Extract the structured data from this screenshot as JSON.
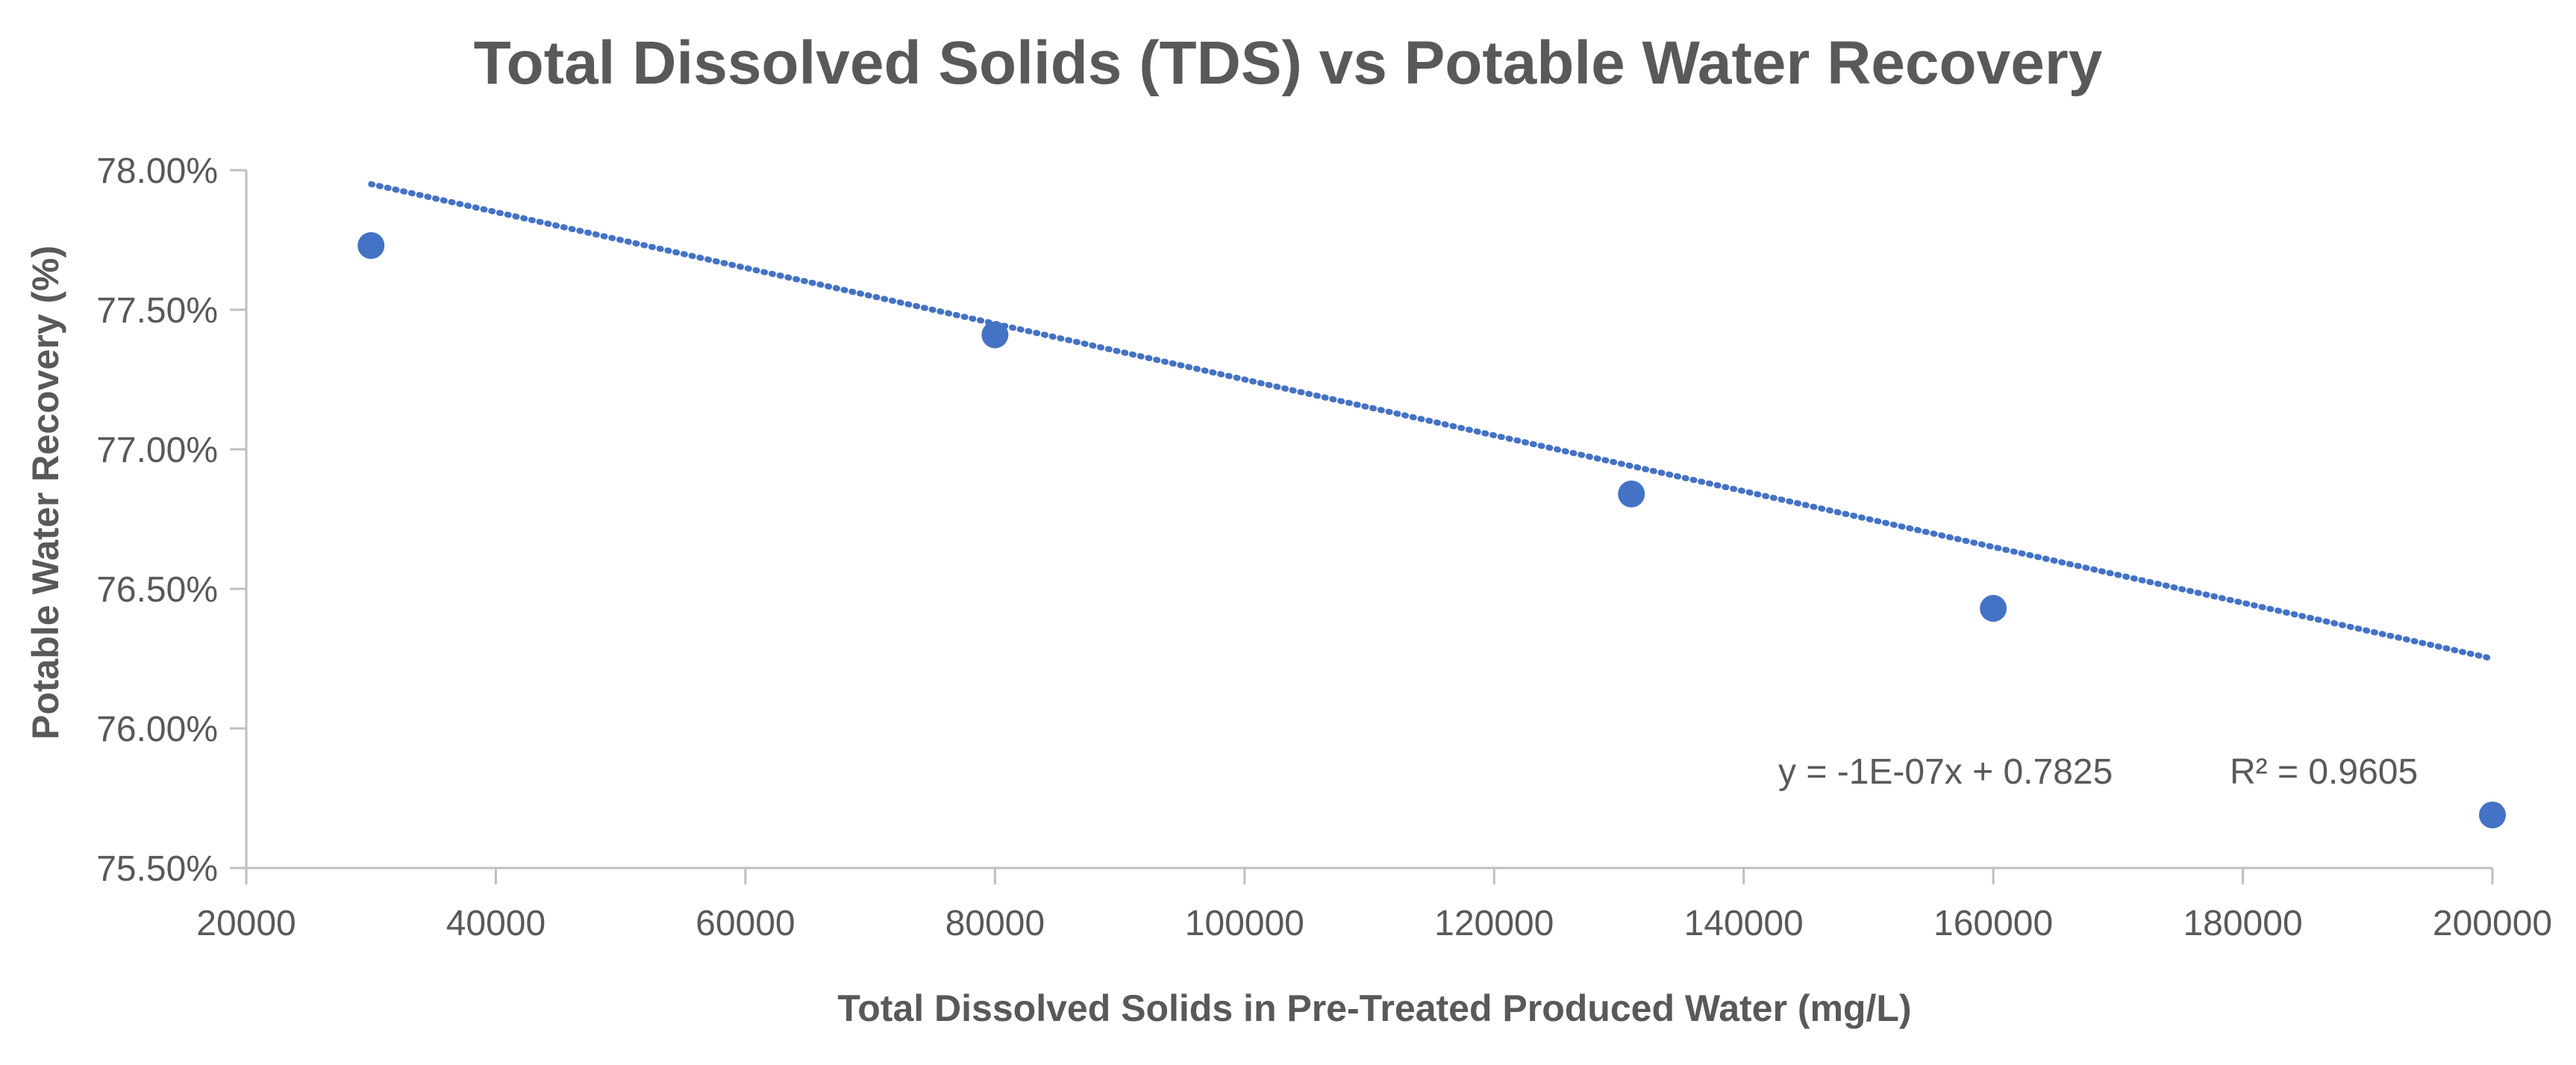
{
  "chart_data": {
    "type": "scatter",
    "title": "Total Dissolved Solids (TDS) vs Potable Water Recovery",
    "xlabel": "Total Dissolved Solids in Pre-Treated Produced Water (mg/L)",
    "ylabel": "Potable Water Recovery (%)",
    "xlim": [
      20000,
      200000
    ],
    "ylim": [
      0.755,
      0.78
    ],
    "x_ticks": [
      20000,
      40000,
      60000,
      80000,
      100000,
      120000,
      140000,
      160000,
      180000,
      200000
    ],
    "x_tick_labels": [
      "20000",
      "40000",
      "60000",
      "80000",
      "100000",
      "120000",
      "140000",
      "160000",
      "180000",
      "200000"
    ],
    "y_ticks": [
      0.755,
      0.76,
      0.765,
      0.77,
      0.775,
      0.78
    ],
    "y_tick_labels": [
      "75.50%",
      "76.00%",
      "76.50%",
      "77.00%",
      "77.50%",
      "78.00%"
    ],
    "series": [
      {
        "name": "Potable Water Recovery",
        "color": "#4472C4",
        "points": [
          {
            "x": 30000,
            "y": 0.7773
          },
          {
            "x": 80000,
            "y": 0.7741
          },
          {
            "x": 131000,
            "y": 0.7684
          },
          {
            "x": 160000,
            "y": 0.7643
          },
          {
            "x": 200000,
            "y": 0.7569
          }
        ]
      }
    ],
    "trendline": {
      "type": "linear",
      "style": "dotted",
      "color": "#4472C4",
      "slope": -1e-07,
      "intercept": 0.7825,
      "x_range": [
        30000,
        200000
      ],
      "equation_label": "y = -1E-07x + 0.7825",
      "r_squared_label": "R² = 0.9605"
    },
    "grid": false
  }
}
